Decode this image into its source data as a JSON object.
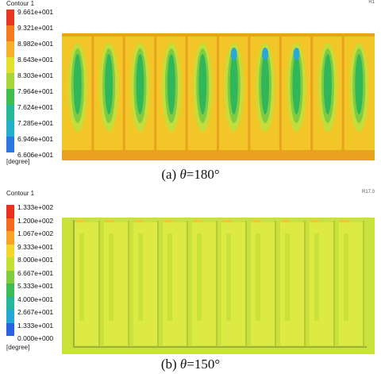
{
  "panel_a": {
    "title": "Contour 1",
    "tag_lines": [
      "R1",
      "R1"
    ],
    "unit": "[degree]",
    "legend_labels": [
      "9.661e+001",
      "9.321e+001",
      "8.982e+001",
      "8.643e+001",
      "8.303e+001",
      "7.964e+001",
      "7.624e+001",
      "7.285e+001",
      "6.946e+001",
      "6.606e+001"
    ],
    "legend_colors": [
      "#e8361f",
      "#f57a20",
      "#f7b027",
      "#e3e02f",
      "#a6d63a",
      "#3fbe4c",
      "#27b89a",
      "#22aecd",
      "#2a78e0",
      "#1b3fd8"
    ],
    "caption_prefix": "(a) ",
    "caption_theta": "θ",
    "caption_value": "=180°"
  },
  "panel_b": {
    "title": "Contour 1",
    "tag": "R17.0",
    "unit": "[degree]",
    "legend_labels": [
      "1.333e+002",
      "1.200e+002",
      "1.067e+002",
      "9.333e+001",
      "8.000e+001",
      "6.667e+001",
      "5.333e+001",
      "4.000e+001",
      "2.667e+001",
      "1.333e+001",
      "0.000e+000"
    ],
    "legend_colors": [
      "#e8301c",
      "#f26b1f",
      "#f8a426",
      "#f4d62c",
      "#c3df33",
      "#7fcc3c",
      "#3dbb55",
      "#23b79e",
      "#22a7d6",
      "#2763e0",
      "#1b34d6"
    ],
    "caption_prefix": "(b) ",
    "caption_theta": "θ",
    "caption_value": "=150°"
  },
  "colors": {
    "field_a_background": "#f2c626",
    "field_a_channel_edge": "#e9a21f",
    "field_a_cells": [
      "#2fb75a",
      "#7fcb43",
      "#c5dd3a"
    ],
    "field_a_hotspot": "#2aa8d8",
    "field_b_background": "#c8e23a",
    "field_b_light": "#ddea44",
    "field_b_hot": "#f8c52a"
  }
}
